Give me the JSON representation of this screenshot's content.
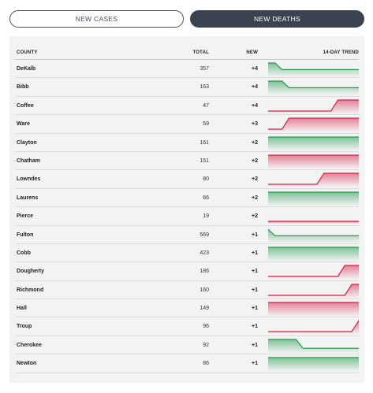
{
  "tabs": {
    "new_cases": "NEW CASES",
    "new_deaths": "NEW DEATHS",
    "active": "new_deaths"
  },
  "table": {
    "headers": {
      "county": "COUNTY",
      "total": "TOTAL",
      "new": "NEW",
      "trend": "14-DAY TREND"
    },
    "colors": {
      "down": "#1e9a4a",
      "up": "#d6224a"
    },
    "rows": [
      {
        "county": "DeKalb",
        "total": "357",
        "new": "+4",
        "trend_direction": "down",
        "trend": [
          1,
          1,
          0.4,
          0.4,
          0.4,
          0.4,
          0.4,
          0.4,
          0.4,
          0.4,
          0.4,
          0.4,
          0.4,
          0.4
        ]
      },
      {
        "county": "Bibb",
        "total": "163",
        "new": "+4",
        "trend_direction": "down",
        "trend": [
          1,
          1,
          1,
          0.4,
          0.4,
          0.4,
          0.4,
          0.4,
          0.4,
          0.4,
          0.4,
          0.4,
          0.4,
          0.4
        ]
      },
      {
        "county": "Coffee",
        "total": "47",
        "new": "+4",
        "trend_direction": "up",
        "trend": [
          0,
          0,
          0,
          0,
          0,
          0,
          0,
          0,
          0,
          0,
          1,
          1,
          1,
          1
        ]
      },
      {
        "county": "Ware",
        "total": "59",
        "new": "+3",
        "trend_direction": "up",
        "trend": [
          0,
          0,
          0,
          1,
          1,
          1,
          1,
          1,
          1,
          1,
          1,
          1,
          1,
          1
        ]
      },
      {
        "county": "Clayton",
        "total": "161",
        "new": "+2",
        "trend_direction": "down",
        "trend": [
          1,
          1,
          1,
          1,
          1,
          1,
          1,
          1,
          1,
          1,
          1,
          1,
          1,
          1
        ]
      },
      {
        "county": "Chatham",
        "total": "151",
        "new": "+2",
        "trend_direction": "up",
        "trend": [
          1,
          1,
          1,
          1,
          1,
          1,
          1,
          1,
          1,
          1,
          1,
          1,
          1,
          1
        ]
      },
      {
        "county": "Lowndes",
        "total": "80",
        "new": "+2",
        "trend_direction": "up",
        "trend": [
          0,
          0,
          0,
          0,
          0,
          0,
          0,
          0,
          1,
          1,
          1,
          1,
          1,
          1
        ]
      },
      {
        "county": "Laurens",
        "total": "66",
        "new": "+2",
        "trend_direction": "down",
        "trend": [
          1,
          1,
          1,
          1,
          1,
          1,
          1,
          1,
          1,
          1,
          1,
          1,
          1,
          1
        ]
      },
      {
        "county": "Pierce",
        "total": "19",
        "new": "+2",
        "trend_direction": "up",
        "trend": [
          0,
          0,
          0,
          0,
          0,
          0,
          0,
          0,
          0,
          0,
          0,
          0,
          0,
          0
        ]
      },
      {
        "county": "Fulton",
        "total": "569",
        "new": "+1",
        "trend_direction": "down",
        "trend": [
          1,
          0.4,
          0.4,
          0.4,
          0.4,
          0.4,
          0.4,
          0.4,
          0.4,
          0.4,
          0.4,
          0.4,
          0.4,
          0.4
        ]
      },
      {
        "county": "Cobb",
        "total": "423",
        "new": "+1",
        "trend_direction": "down",
        "trend": [
          1,
          1,
          1,
          1,
          1,
          1,
          1,
          1,
          1,
          1,
          1,
          1,
          1,
          1
        ]
      },
      {
        "county": "Dougherty",
        "total": "186",
        "new": "+1",
        "trend_direction": "up",
        "trend": [
          0,
          0,
          0,
          0,
          0,
          0,
          0,
          0,
          0,
          0,
          0,
          1,
          1,
          1
        ]
      },
      {
        "county": "Richmond",
        "total": "160",
        "new": "+1",
        "trend_direction": "up",
        "trend": [
          0,
          0,
          0,
          0,
          0,
          0,
          0,
          0,
          0,
          0,
          0,
          0,
          1,
          1
        ]
      },
      {
        "county": "Hall",
        "total": "149",
        "new": "+1",
        "trend_direction": "up",
        "trend": [
          1,
          1,
          1,
          1,
          1,
          1,
          1,
          1,
          1,
          1,
          1,
          1,
          1,
          1
        ]
      },
      {
        "county": "Troup",
        "total": "96",
        "new": "+1",
        "trend_direction": "up",
        "trend": [
          0,
          0,
          0,
          0,
          0,
          0,
          0,
          0,
          0,
          0,
          0,
          0,
          0,
          1
        ]
      },
      {
        "county": "Cherokee",
        "total": "92",
        "new": "+1",
        "trend_direction": "down",
        "trend": [
          1,
          1,
          1,
          1,
          1,
          0.2,
          0.2,
          0.2,
          0.2,
          0.2,
          0.2,
          0.2,
          0.2,
          0.2
        ]
      },
      {
        "county": "Newton",
        "total": "86",
        "new": "+1",
        "trend_direction": "down",
        "trend": [
          1,
          1,
          1,
          1,
          1,
          1,
          1,
          1,
          1,
          1,
          1,
          1,
          1,
          1
        ]
      }
    ]
  }
}
